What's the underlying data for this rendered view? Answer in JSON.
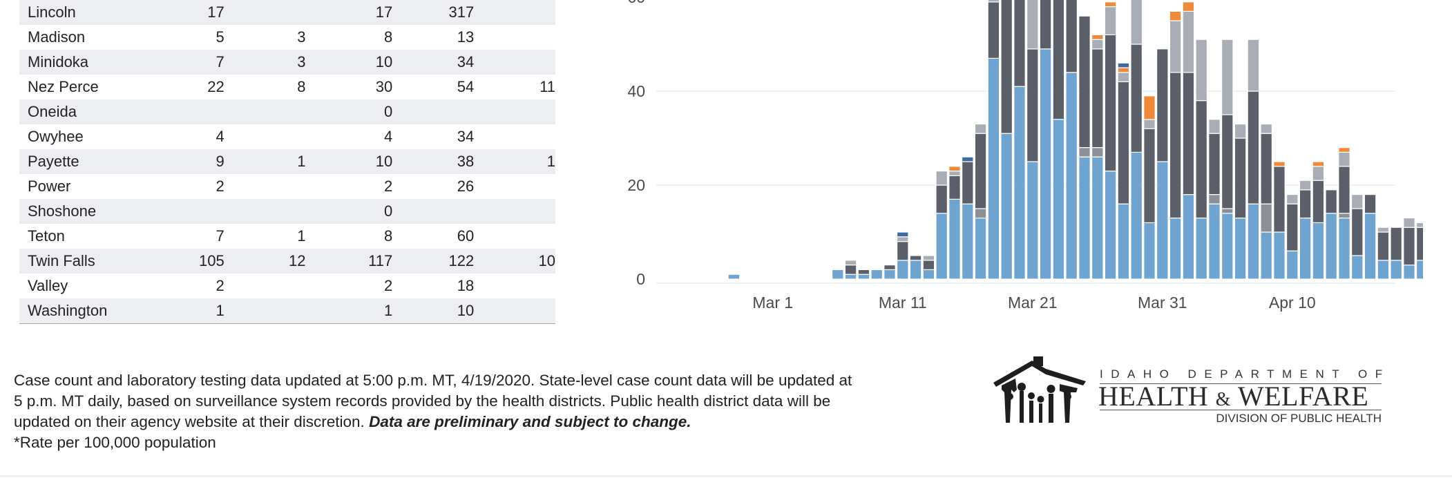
{
  "table": {
    "rows": [
      {
        "county": "Lincoln",
        "c1": "17",
        "c2": "",
        "c3": "17",
        "c4": "317",
        "c5": ""
      },
      {
        "county": "Madison",
        "c1": "5",
        "c2": "3",
        "c3": "8",
        "c4": "13",
        "c5": ""
      },
      {
        "county": "Minidoka",
        "c1": "7",
        "c2": "3",
        "c3": "10",
        "c4": "34",
        "c5": ""
      },
      {
        "county": "Nez Perce",
        "c1": "22",
        "c2": "8",
        "c3": "30",
        "c4": "54",
        "c5": "11"
      },
      {
        "county": "Oneida",
        "c1": "",
        "c2": "",
        "c3": "0",
        "c4": "",
        "c5": ""
      },
      {
        "county": "Owyhee",
        "c1": "4",
        "c2": "",
        "c3": "4",
        "c4": "34",
        "c5": ""
      },
      {
        "county": "Payette",
        "c1": "9",
        "c2": "1",
        "c3": "10",
        "c4": "38",
        "c5": "1"
      },
      {
        "county": "Power",
        "c1": "2",
        "c2": "",
        "c3": "2",
        "c4": "26",
        "c5": ""
      },
      {
        "county": "Shoshone",
        "c1": "",
        "c2": "",
        "c3": "0",
        "c4": "",
        "c5": ""
      },
      {
        "county": "Teton",
        "c1": "7",
        "c2": "1",
        "c3": "8",
        "c4": "60",
        "c5": ""
      },
      {
        "county": "Twin Falls",
        "c1": "105",
        "c2": "12",
        "c3": "117",
        "c4": "122",
        "c5": "10"
      },
      {
        "county": "Valley",
        "c1": "2",
        "c2": "",
        "c3": "2",
        "c4": "18",
        "c5": ""
      },
      {
        "county": "Washington",
        "c1": "1",
        "c2": "",
        "c3": "1",
        "c4": "10",
        "c5": ""
      }
    ]
  },
  "chart_data": {
    "type": "bar",
    "stacked": true,
    "x_start": "Feb 23",
    "x_ticks": [
      "Mar 1",
      "Mar 11",
      "Mar 21",
      "Mar 31",
      "Apr 10"
    ],
    "y_ticks": [
      0,
      20,
      40,
      60
    ],
    "ylim": [
      0,
      60
    ],
    "grid": true,
    "legend": "none",
    "colors": {
      "blue": "#6fa3d0",
      "dark": "#5b5f69",
      "light": "#a8adb6",
      "orange": "#f08a3a",
      "darkblue": "#3f6aa0",
      "mid": "#8a8f98"
    },
    "series_order": [
      "blue",
      "mid",
      "dark",
      "light",
      "orange",
      "darkblue"
    ],
    "days": [
      [
        0,
        0,
        0,
        0,
        0,
        0
      ],
      [
        0,
        0,
        0,
        0,
        0,
        0
      ],
      [
        0,
        0,
        0,
        0,
        0,
        0
      ],
      [
        1,
        0,
        0,
        0,
        0,
        0
      ],
      [
        0,
        0,
        0,
        0,
        0,
        0
      ],
      [
        0,
        0,
        0,
        0,
        0,
        0
      ],
      [
        0,
        0,
        0,
        0,
        0,
        0
      ],
      [
        0,
        0,
        0,
        0,
        0,
        0
      ],
      [
        0,
        0,
        0,
        0,
        0,
        0
      ],
      [
        0,
        0,
        0,
        0,
        0,
        0
      ],
      [
        0,
        0,
        0,
        0,
        0,
        0
      ],
      [
        2,
        0,
        0,
        0,
        0,
        0
      ],
      [
        1,
        0,
        2,
        1,
        0,
        0
      ],
      [
        1,
        0,
        1,
        0,
        0,
        0
      ],
      [
        2,
        0,
        0,
        0,
        0,
        0
      ],
      [
        2,
        0,
        1,
        0,
        0,
        0
      ],
      [
        4,
        0,
        4,
        1,
        0,
        1
      ],
      [
        4,
        0,
        1,
        0,
        0,
        0
      ],
      [
        2,
        0,
        2,
        1,
        0,
        0
      ],
      [
        14,
        0,
        6,
        3,
        0,
        0
      ],
      [
        17,
        0,
        5,
        1,
        1,
        0
      ],
      [
        16,
        0,
        9,
        0,
        0,
        1
      ],
      [
        13,
        2,
        16,
        2,
        0,
        0
      ],
      [
        47,
        0,
        12,
        6,
        0,
        0
      ],
      [
        31,
        0,
        37,
        6,
        0,
        0
      ],
      [
        41,
        0,
        20,
        4,
        0,
        0
      ],
      [
        25,
        0,
        24,
        20,
        0,
        0
      ],
      [
        49,
        0,
        20,
        5,
        0,
        0
      ],
      [
        34,
        0,
        37,
        8,
        0,
        0
      ],
      [
        44,
        0,
        21,
        15,
        0,
        0
      ],
      [
        26,
        2,
        28,
        0,
        0,
        0
      ],
      [
        26,
        2,
        21,
        2,
        1,
        0
      ],
      [
        23,
        0,
        29,
        6,
        1,
        0
      ],
      [
        16,
        0,
        26,
        2,
        1,
        1
      ],
      [
        27,
        0,
        23,
        12,
        0,
        0
      ],
      [
        12,
        0,
        20,
        2,
        5,
        0
      ],
      [
        25,
        0,
        24,
        0,
        0,
        0
      ],
      [
        13,
        0,
        31,
        11,
        2,
        0
      ],
      [
        18,
        0,
        26,
        13,
        2,
        0
      ],
      [
        13,
        0,
        25,
        13,
        0,
        0
      ],
      [
        16,
        2,
        13,
        3,
        0,
        0
      ],
      [
        14,
        1,
        20,
        16,
        0,
        0
      ],
      [
        13,
        0,
        17,
        3,
        0,
        0
      ],
      [
        16,
        0,
        24,
        11,
        0,
        0
      ],
      [
        10,
        6,
        15,
        2,
        0,
        0
      ],
      [
        10,
        0,
        14,
        0,
        1,
        0
      ],
      [
        6,
        0,
        10,
        2,
        0,
        0
      ],
      [
        13,
        0,
        6,
        2,
        0,
        0
      ],
      [
        12,
        0,
        9,
        3,
        1,
        0
      ],
      [
        14,
        0,
        5,
        0,
        0,
        0
      ],
      [
        13,
        1,
        10,
        3,
        1,
        0
      ],
      [
        5,
        0,
        10,
        3,
        0,
        0
      ],
      [
        14,
        0,
        4,
        0,
        0,
        0
      ],
      [
        4,
        0,
        6,
        1,
        0,
        0
      ],
      [
        4,
        0,
        7,
        0,
        0,
        0
      ],
      [
        3,
        0,
        8,
        2,
        0,
        0
      ],
      [
        4,
        0,
        7,
        1,
        0,
        0
      ],
      [
        2,
        0,
        4,
        1,
        0,
        0
      ],
      [
        4,
        0,
        2,
        0,
        0,
        0
      ],
      [
        0,
        0,
        7,
        0,
        0,
        0
      ],
      [
        0,
        0,
        2,
        0,
        0,
        0
      ]
    ]
  },
  "footer": {
    "line1": "Case count and laboratory testing data updated at 5:00 p.m. MT, 4/19/2020. State-level case count data will be updated at",
    "line2": "5 p.m. MT daily, based on surveillance system records provided by the health districts. Public health district data will be",
    "line3": "updated on their agency website at their discretion.",
    "line3_emphasis": "Data are preliminary and subject to change.",
    "line4": "*Rate per 100,000 population"
  },
  "logo": {
    "dept": "IDAHO DEPARTMENT OF",
    "health": "HEALTH",
    "amp": "&",
    "welfare": "WELFARE",
    "division": "DIVISION OF PUBLIC HEALTH"
  }
}
